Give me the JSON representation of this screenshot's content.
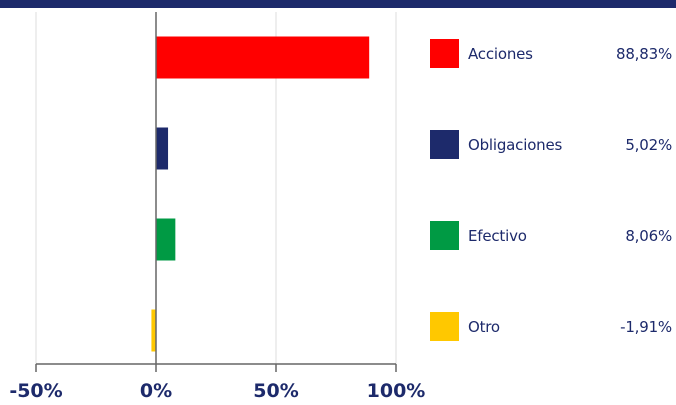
{
  "colors": {
    "top_bar": "#1d2a6b",
    "text": "#1d2a6b",
    "grid": "#dddddd",
    "axis": "#666666"
  },
  "chart_data": {
    "type": "bar",
    "orientation": "horizontal",
    "categories": [
      "Acciones",
      "Obligaciones",
      "Efectivo",
      "Otro"
    ],
    "values": [
      88.83,
      5.02,
      8.06,
      -1.91
    ],
    "value_labels": [
      "88,83%",
      "5,02%",
      "8,06%",
      "-1,91%"
    ],
    "colors": [
      "#ff0000",
      "#1d2a6b",
      "#009a44",
      "#ffc800"
    ],
    "xlim": [
      -50,
      100
    ],
    "xticks": [
      -50,
      0,
      50,
      100
    ],
    "xtick_labels": [
      "-50%",
      "0%",
      "50%",
      "100%"
    ],
    "grid": true,
    "legend_position": "right",
    "title": "",
    "xlabel": "",
    "ylabel": ""
  }
}
